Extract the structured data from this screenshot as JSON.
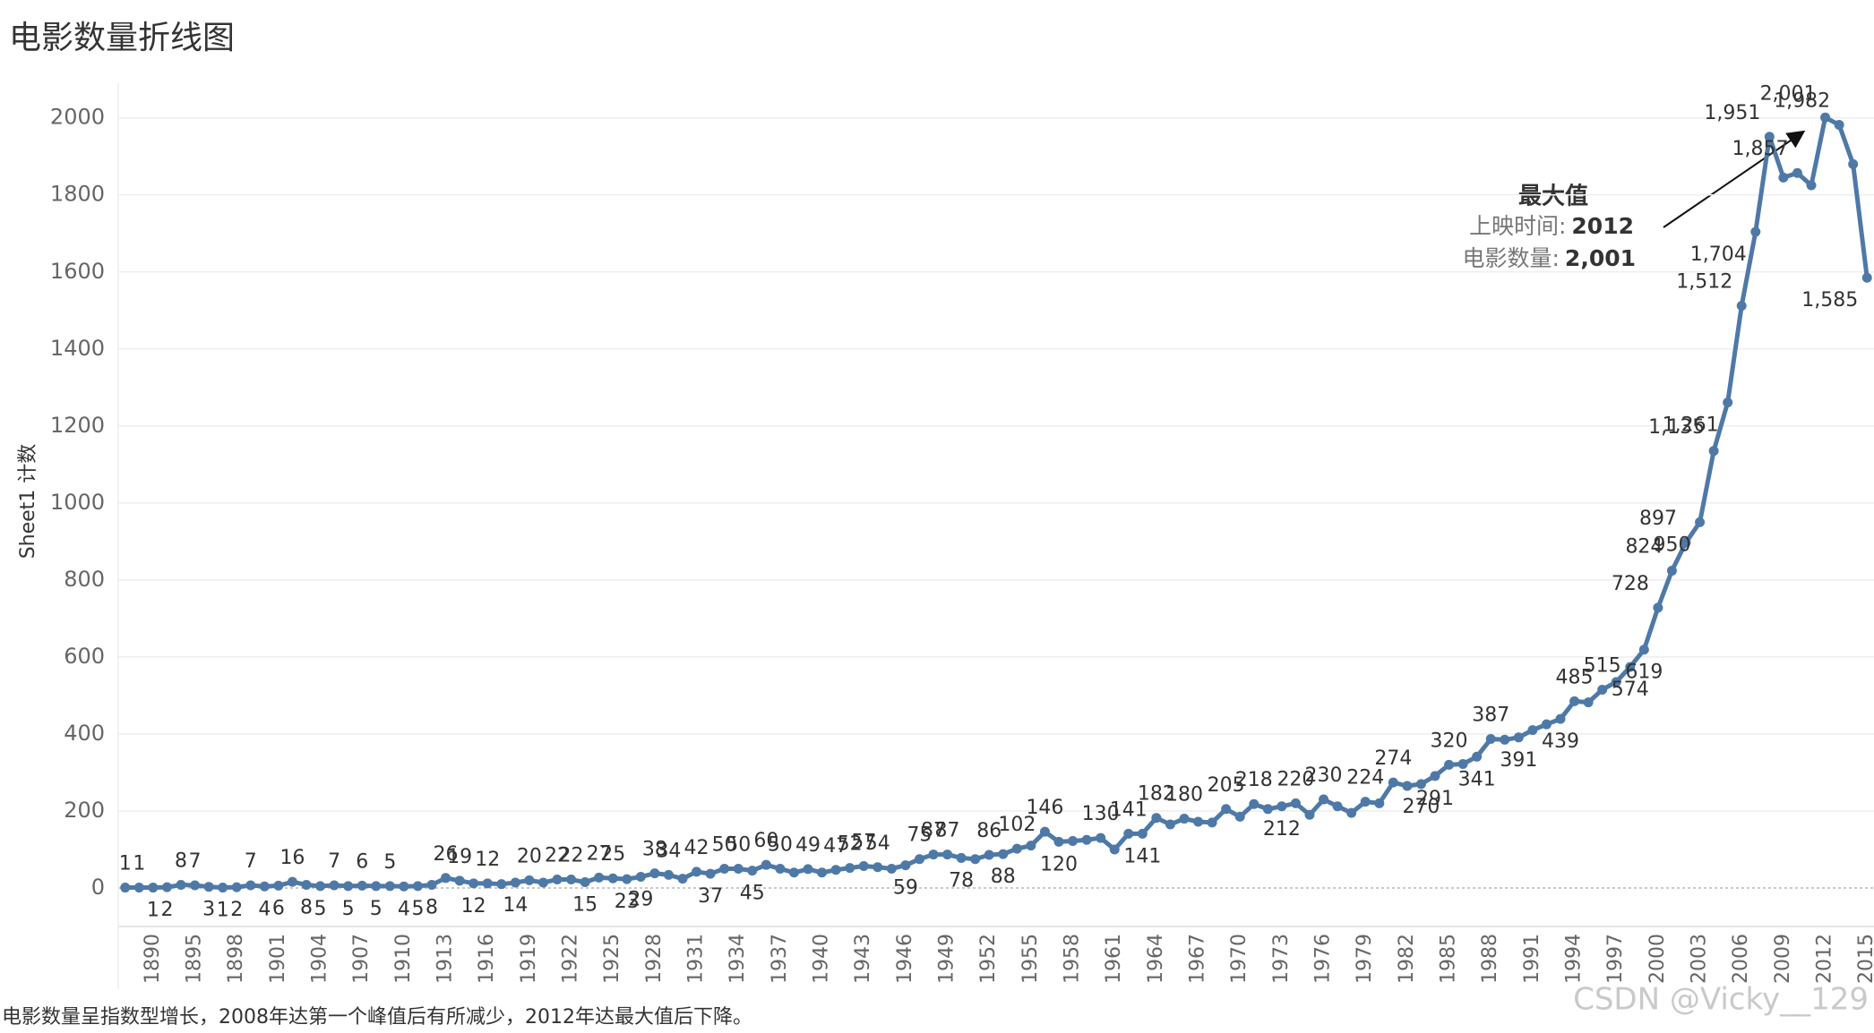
{
  "chart_data": {
    "type": "line",
    "title": "电影数量折线图",
    "y_label": "Sheet1 计数",
    "caption": "电影数量呈指数型增长，2008年达第一个峰值后有所减少，2012年达最大值后下降。",
    "watermark": "CSDN @Vicky__129",
    "color": "#4e79a7",
    "grid": true,
    "ylim": [
      -100,
      2090
    ],
    "yticks": [
      0,
      200,
      400,
      600,
      800,
      1000,
      1200,
      1400,
      1600,
      1800,
      2000
    ],
    "annotation": {
      "title": "最大值",
      "lines": [
        {
          "label": "上映时间:",
          "value": "2012"
        },
        {
          "label": "电影数量:",
          "value": "2,001"
        }
      ]
    },
    "categories": [
      null,
      null,
      "1890",
      null,
      null,
      "1895",
      null,
      null,
      "1898",
      null,
      null,
      "1901",
      null,
      null,
      "1904",
      null,
      null,
      "1907",
      null,
      null,
      "1910",
      null,
      null,
      "1913",
      null,
      null,
      "1916",
      null,
      null,
      "1919",
      null,
      null,
      "1922",
      null,
      null,
      "1925",
      null,
      null,
      "1928",
      null,
      null,
      "1931",
      null,
      null,
      "1934",
      null,
      null,
      "1937",
      null,
      null,
      "1940",
      null,
      null,
      "1943",
      null,
      null,
      "1946",
      null,
      null,
      "1949",
      null,
      null,
      "1952",
      null,
      null,
      "1955",
      null,
      null,
      "1958",
      null,
      null,
      "1961",
      null,
      null,
      "1964",
      null,
      null,
      "1967",
      null,
      null,
      "1970",
      null,
      null,
      "1973",
      null,
      null,
      "1976",
      null,
      null,
      "1979",
      null,
      null,
      "1982",
      null,
      null,
      "1985",
      null,
      null,
      "1988",
      null,
      null,
      "1991",
      null,
      null,
      "1994",
      null,
      null,
      "1997",
      null,
      null,
      "2000",
      null,
      null,
      "2003",
      null,
      null,
      "2006",
      null,
      null,
      "2009",
      null,
      null,
      "2012",
      null,
      null,
      "2015"
    ],
    "values": [
      1,
      1,
      1,
      2,
      8,
      7,
      3,
      1,
      2,
      7,
      4,
      6,
      16,
      8,
      5,
      7,
      5,
      6,
      5,
      5,
      4,
      5,
      8,
      26,
      19,
      12,
      12,
      10,
      14,
      20,
      14,
      22,
      22,
      15,
      27,
      25,
      23,
      29,
      38,
      34,
      24,
      42,
      37,
      50,
      50,
      45,
      60,
      50,
      40,
      49,
      40,
      47,
      52,
      57,
      54,
      50,
      59,
      75,
      87,
      87,
      78,
      75,
      86,
      88,
      102,
      110,
      146,
      120,
      122,
      125,
      130,
      100,
      141,
      141,
      182,
      165,
      180,
      172,
      170,
      205,
      185,
      218,
      205,
      212,
      220,
      190,
      230,
      212,
      195,
      224,
      220,
      274,
      265,
      270,
      291,
      320,
      322,
      341,
      387,
      385,
      391,
      410,
      425,
      439,
      485,
      482,
      515,
      535,
      574,
      619,
      728,
      824,
      897,
      950,
      1135,
      1261,
      1512,
      1704,
      1951,
      1845,
      1857,
      1825,
      2001,
      1982,
      1880,
      1585
    ],
    "value_labels": [
      "1",
      "1",
      "1",
      "2",
      "8",
      "7",
      "3",
      "1",
      "2",
      "7",
      "4",
      "6",
      "16",
      "8",
      "5",
      "7",
      "5",
      "6",
      "5",
      "5",
      "4",
      "5",
      "8",
      "26",
      "19",
      "12",
      "12",
      null,
      "14",
      "20",
      null,
      "22",
      "22",
      "15",
      "27",
      "25",
      "23",
      "29",
      "38",
      "34",
      null,
      "42",
      "37",
      "50",
      "50",
      "45",
      "60",
      "50",
      null,
      "49",
      null,
      "47",
      "52",
      "57",
      "54",
      null,
      "59",
      "75",
      "87",
      "87",
      "78",
      null,
      "86",
      "88",
      "102",
      null,
      "146",
      "120",
      null,
      null,
      "130",
      null,
      "141",
      "141",
      "182",
      null,
      "180",
      null,
      null,
      "205",
      null,
      "218",
      null,
      "212",
      "220",
      null,
      "230",
      null,
      null,
      "224",
      null,
      "274",
      null,
      "270",
      "291",
      "320",
      null,
      "341",
      "387",
      null,
      "391",
      null,
      null,
      "439",
      "485",
      null,
      "515",
      null,
      "574",
      "619",
      "728",
      "824",
      "897",
      "950",
      "1,135",
      "1,261",
      "1,512",
      "1,704",
      "1,951",
      null,
      "1,857",
      null,
      "2,001",
      "1,982",
      null,
      "1,585"
    ]
  }
}
